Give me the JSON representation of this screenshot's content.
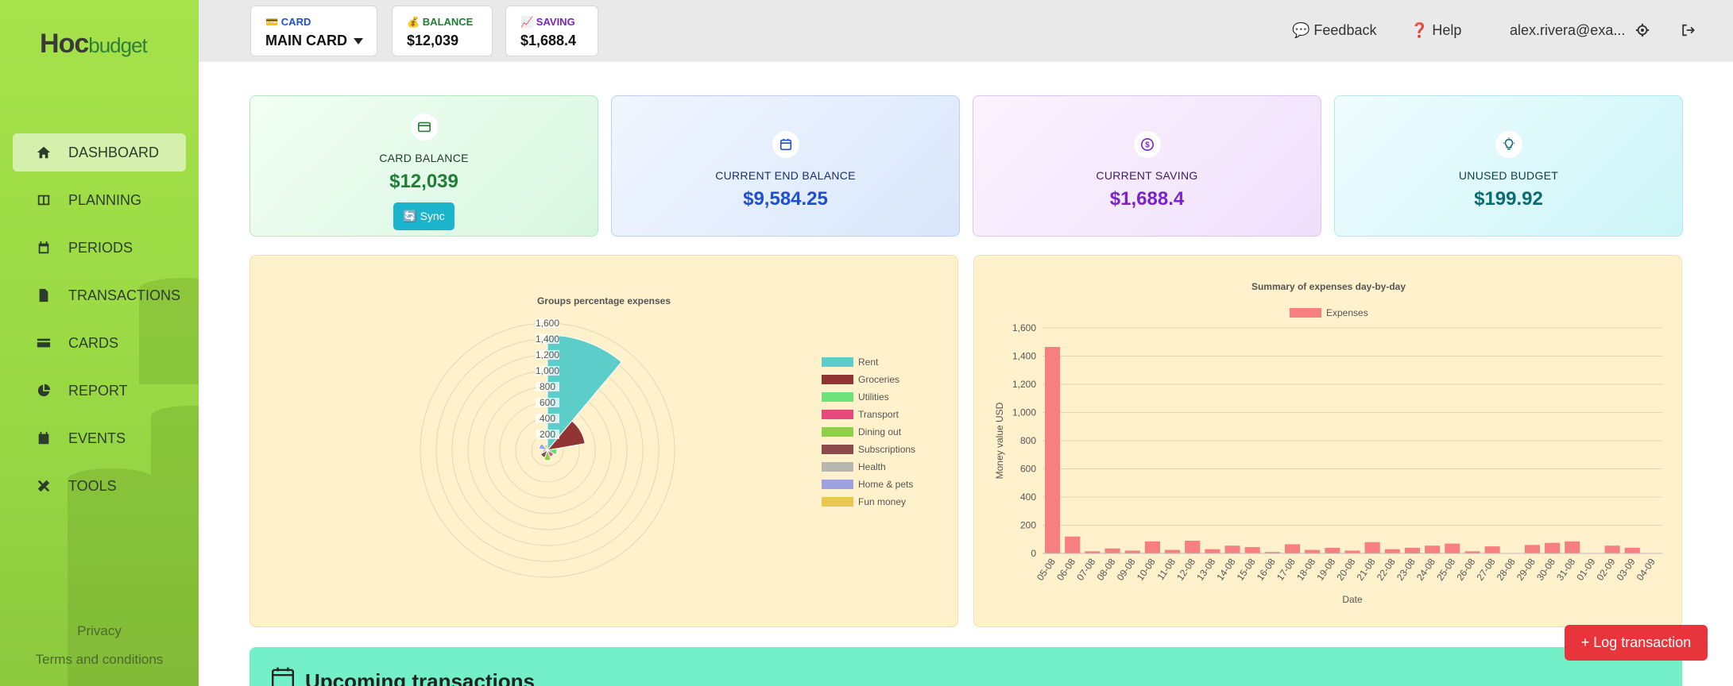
{
  "sidebar": {
    "logo_main": "H",
    "logo_mid": "oc",
    "logo_budget": "budget",
    "items": [
      {
        "label": "DASHBOARD",
        "icon": "home-icon",
        "active": true
      },
      {
        "label": "PLANNING",
        "icon": "columns-icon"
      },
      {
        "label": "PERIODS",
        "icon": "calendar-icon"
      },
      {
        "label": "TRANSACTIONS",
        "icon": "file-invoice-icon"
      },
      {
        "label": "CARDS",
        "icon": "credit-card-icon"
      },
      {
        "label": "REPORT",
        "icon": "pie-chart-icon"
      },
      {
        "label": "EVENTS",
        "icon": "calendar-check-icon"
      },
      {
        "label": "TOOLS",
        "icon": "tools-icon"
      }
    ],
    "privacy": "Privacy",
    "terms": "Terms and conditions"
  },
  "topbar": {
    "card_label": "💳 CARD",
    "card_value": "MAIN CARD",
    "balance_label": "💰 BALANCE",
    "balance_value": "$12,039",
    "saving_label": "📈 SAVING",
    "saving_value": "$1,688.4",
    "feedback": "💬 Feedback",
    "help": "❓ Help",
    "email": "alex.rivera@exa..."
  },
  "stats": {
    "card_balance": {
      "title": "CARD BALANCE",
      "value": "$12,039",
      "button": "🔄 Sync"
    },
    "end_balance": {
      "title": "CURRENT END BALANCE",
      "value": "$9,584.25"
    },
    "saving": {
      "title": "CURRENT SAVING",
      "value": "$1,688.4"
    },
    "unused": {
      "title": "UNUSED BUDGET",
      "value": "$199.92"
    }
  },
  "colors": {
    "green": "#1e7e34",
    "blue": "#1f4fd1",
    "purple": "#7b22c8",
    "teal": "#0c6c73"
  },
  "chart_data": [
    {
      "type": "polarArea",
      "title": "Groups percentage expenses",
      "rlim": [
        0,
        1600
      ],
      "rticks": [
        "1,600",
        "1,400",
        "1,200",
        "1,000",
        "800",
        "600",
        "400",
        "200"
      ],
      "categories": [
        "Rent",
        "Groceries",
        "Utilities",
        "Transport",
        "Dining out",
        "Subscriptions",
        "Health",
        "Home & pets",
        "Fun money"
      ],
      "values": [
        1450,
        480,
        120,
        90,
        130,
        100,
        60,
        110,
        70
      ],
      "colors": [
        "#5ccdc8",
        "#933434",
        "#6de27a",
        "#e64a7c",
        "#8ed04a",
        "#8c4a4a",
        "#b8b8b0",
        "#9fa2e0",
        "#e8c850"
      ],
      "legend": "right"
    },
    {
      "type": "bar",
      "title": "Summary of expenses day-by-day",
      "xlabel": "Date",
      "ylabel": "Money value USD",
      "ylim": [
        0,
        1600
      ],
      "yticks": [
        "0",
        "200",
        "400",
        "600",
        "800",
        "1,000",
        "1,200",
        "1,400",
        "1,600"
      ],
      "categories": [
        "05-08",
        "06-08",
        "07-08",
        "08-08",
        "09-08",
        "10-08",
        "11-08",
        "12-08",
        "13-08",
        "14-08",
        "15-08",
        "16-08",
        "17-08",
        "18-08",
        "19-08",
        "20-08",
        "21-08",
        "22-08",
        "23-08",
        "24-08",
        "25-08",
        "26-08",
        "27-08",
        "28-08",
        "29-08",
        "30-08",
        "31-08",
        "01-09",
        "02-09",
        "03-09",
        "04-09"
      ],
      "series": [
        {
          "name": "Expenses",
          "color": "#f77f7f",
          "values": [
            1465,
            120,
            15,
            35,
            20,
            85,
            25,
            90,
            30,
            55,
            45,
            10,
            65,
            25,
            40,
            20,
            80,
            30,
            40,
            55,
            70,
            15,
            50,
            0,
            60,
            75,
            85,
            0,
            55,
            40,
            0
          ]
        }
      ],
      "legend": "top"
    }
  ],
  "upcoming": {
    "title": "Upcoming transactions"
  },
  "log_button": "+ Log transaction"
}
